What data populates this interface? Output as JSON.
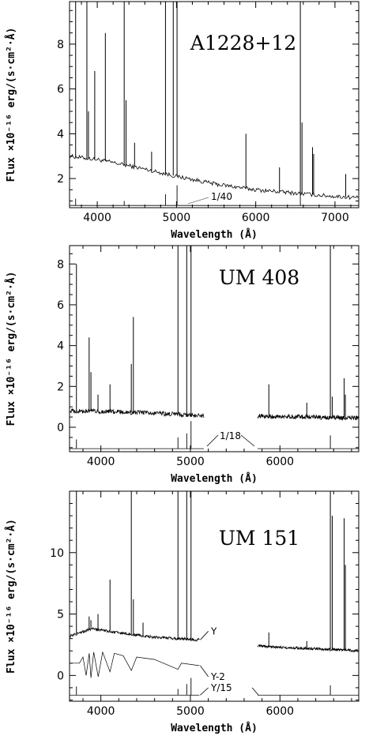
{
  "chart_data": [
    {
      "type": "line",
      "title": "A1228+12",
      "xlabel": "Wavelength (Å)",
      "ylabel": "Flux ×10⁻¹⁶ erg/(s·cm²·Å)",
      "xlim": [
        3650,
        7300
      ],
      "ylim": [
        0.7,
        9.9
      ],
      "xticks": [
        4000,
        5000,
        6000,
        7000
      ],
      "yticks": [
        2,
        4,
        6,
        8
      ],
      "continuum": {
        "name": "",
        "points": [
          [
            3650,
            3.0
          ],
          [
            4000,
            2.85
          ],
          [
            4500,
            2.5
          ],
          [
            5000,
            2.1
          ],
          [
            5500,
            1.75
          ],
          [
            6000,
            1.5
          ],
          [
            6500,
            1.35
          ],
          [
            7000,
            1.2
          ],
          [
            7300,
            1.15
          ]
        ]
      },
      "emission_lines": [
        [
          3727,
          9.9
        ],
        [
          3869,
          9.9
        ],
        [
          3889,
          5.0
        ],
        [
          3968,
          6.8
        ],
        [
          4102,
          8.5
        ],
        [
          4340,
          9.9
        ],
        [
          4363,
          5.5
        ],
        [
          4471,
          3.6
        ],
        [
          4686,
          3.2
        ],
        [
          4861,
          9.9
        ],
        [
          4959,
          9.9
        ],
        [
          5007,
          9.9
        ],
        [
          5876,
          4.0
        ],
        [
          6300,
          2.5
        ],
        [
          6563,
          9.9
        ],
        [
          6584,
          4.5
        ],
        [
          6717,
          3.4
        ],
        [
          6731,
          3.1
        ],
        [
          7136,
          2.2
        ]
      ],
      "scaled_label": "1/40",
      "scaled_level": 0.8,
      "scaled_lines": [
        [
          3727,
          1.1
        ],
        [
          4340,
          1.0
        ],
        [
          4861,
          1.3
        ],
        [
          5007,
          1.7
        ],
        [
          6563,
          1.4
        ]
      ]
    },
    {
      "type": "line",
      "title": "UM 408",
      "xlabel": "Wavelength (Å)",
      "ylabel": "Flux ×10⁻¹⁶ erg/(s·cm²·Å)",
      "xlim": [
        3650,
        6880
      ],
      "ylim": [
        -1.2,
        8.9
      ],
      "xticks": [
        4000,
        5000,
        6000
      ],
      "yticks": [
        0,
        2,
        4,
        6,
        8
      ],
      "continuum": {
        "name": "",
        "segments": [
          [
            [
              3650,
              0.8
            ],
            [
              4200,
              0.75
            ],
            [
              4800,
              0.65
            ],
            [
              5150,
              0.55
            ]
          ],
          [
            [
              5750,
              0.55
            ],
            [
              6300,
              0.5
            ],
            [
              6880,
              0.45
            ]
          ]
        ]
      },
      "emission_lines": [
        [
          3727,
          8.0
        ],
        [
          3869,
          4.4
        ],
        [
          3889,
          2.7
        ],
        [
          3968,
          1.6
        ],
        [
          4102,
          2.1
        ],
        [
          4340,
          3.1
        ],
        [
          4363,
          5.4
        ],
        [
          4861,
          8.9
        ],
        [
          4959,
          8.9
        ],
        [
          5007,
          8.9
        ],
        [
          5876,
          2.1
        ],
        [
          6300,
          1.2
        ],
        [
          6563,
          8.9
        ],
        [
          6584,
          1.5
        ],
        [
          6717,
          2.4
        ],
        [
          6731,
          1.6
        ]
      ],
      "scaled_label": "1/18",
      "scaled_level": -1.05,
      "scaled_lines": [
        [
          3727,
          -0.6
        ],
        [
          4861,
          -0.5
        ],
        [
          4959,
          -0.3
        ],
        [
          5007,
          0.3
        ],
        [
          6563,
          -0.4
        ]
      ],
      "scaled_segments": [
        [
          3650,
          5150
        ],
        [
          5750,
          6880
        ]
      ]
    },
    {
      "type": "line",
      "title": "UM 151",
      "xlabel": "Wavelength (Å)",
      "ylabel": "Flux ×10⁻¹⁶ erg/(s·cm²·Å)",
      "xlim": [
        3650,
        6880
      ],
      "ylim": [
        -2.1,
        15.0
      ],
      "xticks": [
        4000,
        5000,
        6000
      ],
      "yticks": [
        0,
        5,
        10
      ],
      "continuum": {
        "name": "Y",
        "segments": [
          [
            [
              3650,
              3.2
            ],
            [
              3900,
              3.8
            ],
            [
              4200,
              3.5
            ],
            [
              4600,
              3.1
            ],
            [
              5100,
              2.9
            ]
          ],
          [
            [
              5750,
              2.4
            ],
            [
              6300,
              2.2
            ],
            [
              6880,
              2.0
            ]
          ]
        ]
      },
      "emission_lines": [
        [
          3727,
          15.0
        ],
        [
          3869,
          4.8
        ],
        [
          3889,
          4.5
        ],
        [
          3968,
          5.0
        ],
        [
          4102,
          7.8
        ],
        [
          4340,
          15.0
        ],
        [
          4363,
          6.2
        ],
        [
          4471,
          4.3
        ],
        [
          4861,
          15.0
        ],
        [
          4959,
          15.0
        ],
        [
          5007,
          15.0
        ],
        [
          5876,
          3.5
        ],
        [
          6300,
          2.8
        ],
        [
          6563,
          15.0
        ],
        [
          6584,
          13.0
        ],
        [
          6717,
          12.8
        ],
        [
          6731,
          9.0
        ]
      ],
      "second_series": {
        "name": "Y-2",
        "points": [
          [
            3650,
            1.0
          ],
          [
            3760,
            1.0
          ],
          [
            3800,
            1.5
          ],
          [
            3835,
            0.0
          ],
          [
            3870,
            1.8
          ],
          [
            3889,
            -0.2
          ],
          [
            3920,
            1.9
          ],
          [
            3970,
            -0.1
          ],
          [
            4020,
            1.9
          ],
          [
            4102,
            0.3
          ],
          [
            4150,
            1.8
          ],
          [
            4250,
            1.6
          ],
          [
            4340,
            0.4
          ],
          [
            4400,
            1.5
          ],
          [
            4600,
            1.3
          ],
          [
            4861,
            0.5
          ],
          [
            4900,
            1.0
          ],
          [
            5100,
            0.8
          ]
        ]
      },
      "scaled_label": "Y/15",
      "scaled_level": -1.6,
      "scaled_lines": [
        [
          3727,
          -0.9
        ],
        [
          4861,
          -1.1
        ],
        [
          4959,
          -0.7
        ],
        [
          5007,
          -0.2
        ],
        [
          6563,
          -0.8
        ]
      ],
      "scaled_segments": [
        [
          3650,
          5100
        ],
        [
          5750,
          6880
        ]
      ]
    }
  ]
}
